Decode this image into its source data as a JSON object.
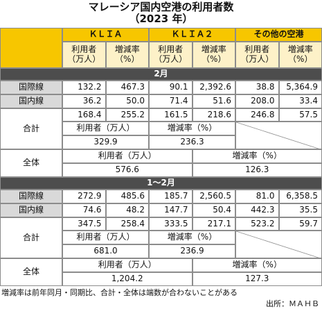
{
  "title": "マレーシア国内空港の利用者数",
  "subtitle": "（2023 年）",
  "header": [
    "ＫＬＩＡ",
    "ＫＬＩＡ２",
    "その他の空港"
  ],
  "sub_header": [
    [
      "利用者",
      "（万人）"
    ],
    [
      "増減率",
      "（%）"
    ]
  ],
  "sections": [
    {
      "name": "2月",
      "rows": [
        {
          "label": "国際線",
          "values": [
            "132.2",
            "467.3",
            "90.1",
            "2,392.6",
            "38.8",
            "5,364.9"
          ]
        },
        {
          "label": "国内線",
          "values": [
            "36.2",
            "50.0",
            "71.4",
            "51.6",
            "208.0",
            "33.4"
          ]
        }
      ],
      "total": {
        "label": "合計",
        "values": [
          "168.4",
          "255.2",
          "161.5",
          "218.6",
          "246.8",
          "57.5"
        ],
        "users_label": "利用者（万人）",
        "users": "329.9",
        "rate_label": "増減率（%）",
        "rate": "236.3"
      },
      "overall": {
        "label": "全体",
        "users_label": "利用者（万人）",
        "users": "576.6",
        "rate_label": "増減率（%）",
        "rate": "126.3"
      }
    },
    {
      "name": "1～2月",
      "rows": [
        {
          "label": "国際線",
          "values": [
            "272.9",
            "485.6",
            "185.7",
            "2,560.5",
            "81.0",
            "6,358.5"
          ]
        },
        {
          "label": "国内線",
          "values": [
            "74.6",
            "48.2",
            "147.7",
            "50.4",
            "442.3",
            "35.5"
          ]
        }
      ],
      "total": {
        "label": "合計",
        "values": [
          "347.5",
          "258.4",
          "333.5",
          "217.1",
          "523.2",
          "59.7"
        ],
        "users_label": "利用者（万人）",
        "users": "681.0",
        "rate_label": "増減率（%）",
        "rate": "236.9"
      },
      "overall": {
        "label": "全体",
        "users_label": "利用者（万人）",
        "users": "1,204.2",
        "rate_label": "増減率（%）",
        "rate": "127.3"
      }
    }
  ],
  "note": "増減率は前年同月・同期比、合計・全体は端数が合わないことがある",
  "source": "出所：ＭＡＨＢ"
}
